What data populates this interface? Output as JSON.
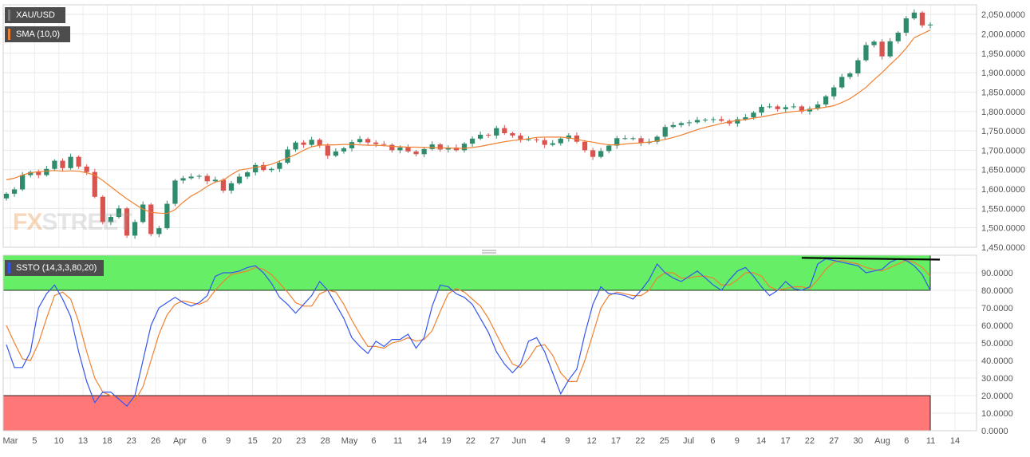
{
  "instrument": "XAU/USD",
  "sma_label": "SMA (10,0)",
  "oscillator_label": "SSTO (14,3,3,80,20)",
  "watermark": "FXSTREET",
  "colors": {
    "up": "#2e8b6b",
    "down": "#d9534f",
    "sma": "#f08030",
    "k_line": "#3355ee",
    "d_line": "#f08030",
    "overbought_zone": "#66ee66",
    "oversold_zone": "#ff7777",
    "trendline": "#000000",
    "legend_bg": "#4d4d4d"
  },
  "chart_data": [
    {
      "type": "candlestick",
      "series_name": "XAU/USD",
      "overlay_name": "SMA (10,0)",
      "ylim": [
        1450,
        2075
      ],
      "y_ticks": [
        "1,450.0000",
        "1,500.0000",
        "1,550.0000",
        "1,600.0000",
        "1,650.0000",
        "1,700.0000",
        "1,750.0000",
        "1,800.0000",
        "1,850.0000",
        "1,900.0000",
        "1,950.0000",
        "2,000.0000",
        "2,050.0000"
      ],
      "x_ticks": [
        "Mar",
        "5",
        "10",
        "13",
        "18",
        "23",
        "26",
        "Apr",
        "6",
        "9",
        "15",
        "20",
        "23",
        "28",
        "May",
        "6",
        "11",
        "14",
        "19",
        "22",
        "27",
        "Jun",
        "4",
        "9",
        "12",
        "17",
        "22",
        "25",
        "Jul",
        "6",
        "9",
        "14",
        "17",
        "22",
        "27",
        "30",
        "Aug",
        "6",
        "11",
        "14"
      ],
      "close": [
        1588,
        1599,
        1636,
        1644,
        1636,
        1652,
        1673,
        1654,
        1683,
        1658,
        1644,
        1580,
        1515,
        1528,
        1550,
        1480,
        1515,
        1560,
        1484,
        1499,
        1562,
        1622,
        1628,
        1632,
        1634,
        1620,
        1624,
        1596,
        1615,
        1632,
        1643,
        1662,
        1649,
        1652,
        1668,
        1702,
        1720,
        1714,
        1727,
        1712,
        1686,
        1697,
        1705,
        1721,
        1729,
        1720,
        1716,
        1714,
        1700,
        1707,
        1697,
        1690,
        1703,
        1715,
        1702,
        1707,
        1700,
        1717,
        1730,
        1740,
        1738,
        1757,
        1744,
        1738,
        1728,
        1728,
        1726,
        1714,
        1718,
        1730,
        1738,
        1722,
        1700,
        1683,
        1698,
        1712,
        1731,
        1731,
        1731,
        1719,
        1722,
        1735,
        1760,
        1765,
        1770,
        1772,
        1778,
        1779,
        1780,
        1776,
        1769,
        1780,
        1785,
        1797,
        1812,
        1813,
        1806,
        1811,
        1813,
        1800,
        1807,
        1818,
        1839,
        1862,
        1889,
        1898,
        1932,
        1971,
        1980,
        1942,
        1981,
        2003,
        2040,
        2055,
        2022,
        2024
      ],
      "sma": [
        1624,
        1628,
        1636,
        1642,
        1645,
        1646,
        1648,
        1646,
        1647,
        1646,
        1642,
        1636,
        1622,
        1606,
        1590,
        1575,
        1561,
        1548,
        1540,
        1538,
        1537,
        1547,
        1566,
        1582,
        1593,
        1607,
        1618,
        1623,
        1637,
        1649,
        1652,
        1656,
        1659,
        1664,
        1672,
        1680,
        1689,
        1700,
        1709,
        1713,
        1714,
        1714,
        1715,
        1715,
        1714,
        1713,
        1713,
        1712,
        1710,
        1709,
        1708,
        1708,
        1707,
        1707,
        1706,
        1706,
        1705,
        1705,
        1707,
        1710,
        1714,
        1718,
        1722,
        1725,
        1727,
        1730,
        1733,
        1734,
        1734,
        1734,
        1732,
        1728,
        1724,
        1721,
        1717,
        1714,
        1714,
        1716,
        1718,
        1719,
        1721,
        1724,
        1728,
        1733,
        1739,
        1746,
        1753,
        1759,
        1764,
        1769,
        1773,
        1777,
        1779,
        1783,
        1786,
        1790,
        1794,
        1797,
        1800,
        1802,
        1805,
        1808,
        1811,
        1815,
        1823,
        1833,
        1847,
        1862,
        1882,
        1900,
        1921,
        1940,
        1963,
        1990,
        2000,
        2010
      ]
    },
    {
      "type": "line",
      "series_name": "SSTO (14,3,3,80,20)",
      "ylim": [
        0,
        100
      ],
      "y_ticks": [
        "0.0000",
        "10.0000",
        "20.0000",
        "30.0000",
        "40.0000",
        "50.0000",
        "60.0000",
        "70.0000",
        "80.0000",
        "90.0000"
      ],
      "bands": {
        "overbought": 80,
        "oversold": 20
      },
      "k": [
        49,
        36,
        36,
        45,
        70,
        78,
        83,
        75,
        65,
        45,
        28,
        16,
        22,
        22,
        18,
        14,
        20,
        40,
        60,
        70,
        73,
        76,
        73,
        71,
        73,
        77,
        88,
        90,
        90,
        91,
        93,
        94,
        90,
        84,
        76,
        72,
        67,
        72,
        77,
        85,
        80,
        72,
        64,
        53,
        48,
        44,
        51,
        48,
        52,
        52,
        55,
        47,
        53,
        71,
        83,
        82,
        78,
        76,
        72,
        64,
        56,
        45,
        38,
        33,
        38,
        51,
        53,
        45,
        33,
        21,
        29,
        35,
        55,
        72,
        82,
        78,
        78,
        77,
        75,
        80,
        86,
        95,
        90,
        87,
        85,
        88,
        91,
        87,
        83,
        80,
        86,
        91,
        93,
        88,
        82,
        77,
        80,
        85,
        81,
        80,
        82,
        95,
        98,
        97,
        96,
        95,
        94,
        90,
        91,
        92,
        96,
        98,
        97,
        94,
        89,
        80
      ],
      "d": [
        60,
        50,
        41,
        40,
        50,
        64,
        77,
        79,
        75,
        62,
        45,
        30,
        22,
        20,
        19,
        18,
        17,
        25,
        40,
        55,
        66,
        72,
        74,
        73,
        72,
        74,
        80,
        85,
        89,
        90,
        91,
        93,
        92,
        89,
        84,
        79,
        73,
        71,
        71,
        78,
        80,
        79,
        72,
        63,
        55,
        48,
        48,
        47,
        50,
        51,
        53,
        51,
        52,
        57,
        68,
        78,
        81,
        79,
        75,
        71,
        64,
        55,
        46,
        38,
        36,
        41,
        48,
        49,
        43,
        33,
        28,
        28,
        40,
        55,
        70,
        77,
        79,
        78,
        77,
        77,
        80,
        87,
        90,
        90,
        87,
        87,
        88,
        88,
        87,
        83,
        83,
        86,
        90,
        90,
        88,
        82,
        80,
        81,
        82,
        82,
        81,
        86,
        92,
        96,
        97,
        96,
        95,
        93,
        92,
        91,
        93,
        95,
        97,
        96,
        93,
        88
      ]
    }
  ]
}
